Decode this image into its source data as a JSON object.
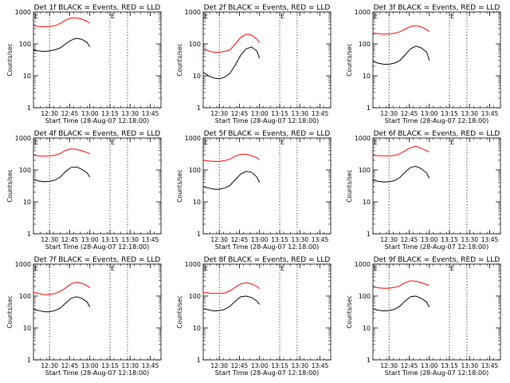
{
  "chart_data": [
    {
      "type": "line",
      "title": "Det 1f BLACK = Events, RED = LLD",
      "xlabel": "Start Time (28-Aug-07 12:18:00)",
      "ylabel": "Counts/sec",
      "yscale": "log",
      "ylim": [
        1,
        1000
      ],
      "xlim": [
        "12:18",
        "13:53"
      ],
      "x_ticks": [
        "12:30",
        "12:45",
        "13:00",
        "13:15",
        "13:30",
        "13:45"
      ],
      "y_ticks": [
        "1",
        "10",
        "100",
        "1000"
      ],
      "vlines": [
        "12:30",
        "13:15",
        "13:28"
      ],
      "marker": "E",
      "series": [
        {
          "color": "#ff0000",
          "x": [
            "12:18",
            "12:22",
            "12:26",
            "12:30",
            "12:34",
            "12:38",
            "12:42",
            "12:46",
            "12:50",
            "12:54",
            "12:58",
            "13:00"
          ],
          "values": [
            370,
            350,
            340,
            350,
            370,
            440,
            560,
            650,
            650,
            600,
            500,
            450
          ]
        },
        {
          "color": "#000000",
          "x": [
            "12:18",
            "12:22",
            "12:26",
            "12:30",
            "12:34",
            "12:38",
            "12:42",
            "12:46",
            "12:50",
            "12:54",
            "12:58",
            "13:00"
          ],
          "values": [
            65,
            60,
            58,
            60,
            65,
            75,
            100,
            130,
            150,
            140,
            110,
            80
          ]
        }
      ]
    },
    {
      "type": "line",
      "title": "Det 2f BLACK = Events, RED = LLD",
      "xlabel": "Start Time (28-Aug-07 12:18:00)",
      "ylabel": "Counts/sec",
      "yscale": "log",
      "ylim": [
        1,
        1000
      ],
      "xlim": [
        "12:18",
        "13:53"
      ],
      "x_ticks": [
        "12:30",
        "12:45",
        "13:00",
        "13:15",
        "13:30",
        "13:45"
      ],
      "y_ticks": [
        "1",
        "10",
        "100",
        "1000"
      ],
      "vlines": [
        "12:30",
        "13:15",
        "13:28"
      ],
      "marker": "E",
      "series": [
        {
          "color": "#ff0000",
          "x": [
            "12:18",
            "12:22",
            "12:26",
            "12:30",
            "12:34",
            "12:38",
            "12:42",
            "12:46",
            "12:50",
            "12:54",
            "12:58",
            "13:00"
          ],
          "values": [
            70,
            60,
            55,
            55,
            58,
            65,
            100,
            160,
            200,
            190,
            140,
            110
          ]
        },
        {
          "color": "#000000",
          "x": [
            "12:18",
            "12:22",
            "12:26",
            "12:30",
            "12:34",
            "12:38",
            "12:42",
            "12:46",
            "12:50",
            "12:54",
            "12:58",
            "13:00"
          ],
          "values": [
            13,
            10,
            8.5,
            8,
            9,
            12,
            22,
            45,
            70,
            80,
            60,
            35
          ]
        }
      ]
    },
    {
      "type": "line",
      "title": "Det 3f BLACK = Events, RED = LLD",
      "xlabel": "Start Time (28-Aug-07 12:18:00)",
      "ylabel": "Counts/sec",
      "yscale": "log",
      "ylim": [
        1,
        1000
      ],
      "xlim": [
        "12:18",
        "13:53"
      ],
      "x_ticks": [
        "12:30",
        "12:45",
        "13:00",
        "13:15",
        "13:30",
        "13:45"
      ],
      "y_ticks": [
        "1",
        "10",
        "100",
        "1000"
      ],
      "vlines": [
        "12:30",
        "13:15",
        "13:28"
      ],
      "marker": "E",
      "series": [
        {
          "color": "#ff0000",
          "x": [
            "12:18",
            "12:22",
            "12:26",
            "12:30",
            "12:34",
            "12:38",
            "12:42",
            "12:46",
            "12:50",
            "12:54",
            "12:58",
            "13:00"
          ],
          "values": [
            220,
            210,
            200,
            205,
            215,
            240,
            290,
            350,
            370,
            340,
            280,
            240
          ]
        },
        {
          "color": "#000000",
          "x": [
            "12:18",
            "12:22",
            "12:26",
            "12:30",
            "12:34",
            "12:38",
            "12:42",
            "12:46",
            "12:50",
            "12:54",
            "12:58",
            "13:00"
          ],
          "values": [
            28,
            25,
            23,
            23,
            25,
            30,
            45,
            70,
            85,
            75,
            55,
            30
          ]
        }
      ]
    },
    {
      "type": "line",
      "title": "Det 4f BLACK = Events, RED = LLD",
      "xlabel": "Start Time (28-Aug-07 12:18:00)",
      "ylabel": "Counts/sec",
      "yscale": "log",
      "ylim": [
        1,
        1000
      ],
      "xlim": [
        "12:18",
        "13:53"
      ],
      "x_ticks": [
        "12:30",
        "12:45",
        "13:00",
        "13:15",
        "13:30",
        "13:45"
      ],
      "y_ticks": [
        "1",
        "10",
        "100",
        "1000"
      ],
      "vlines": [
        "12:30",
        "13:15",
        "13:28"
      ],
      "marker": "E",
      "series": [
        {
          "color": "#ff0000",
          "x": [
            "12:18",
            "12:22",
            "12:26",
            "12:30",
            "12:34",
            "12:38",
            "12:42",
            "12:46",
            "12:50",
            "12:54",
            "12:58",
            "13:00"
          ],
          "values": [
            290,
            275,
            270,
            275,
            290,
            330,
            410,
            460,
            440,
            400,
            350,
            320
          ]
        },
        {
          "color": "#000000",
          "x": [
            "12:18",
            "12:22",
            "12:26",
            "12:30",
            "12:34",
            "12:38",
            "12:42",
            "12:46",
            "12:50",
            "12:54",
            "12:58",
            "13:00"
          ],
          "values": [
            50,
            45,
            43,
            44,
            48,
            60,
            90,
            120,
            125,
            105,
            80,
            60
          ]
        }
      ]
    },
    {
      "type": "line",
      "title": "Det 5f BLACK = Events, RED = LLD",
      "xlabel": "Start Time (28-Aug-07 12:18:00)",
      "ylabel": "Counts/sec",
      "yscale": "log",
      "ylim": [
        1,
        1000
      ],
      "xlim": [
        "12:18",
        "13:53"
      ],
      "x_ticks": [
        "12:30",
        "12:45",
        "13:00",
        "13:15",
        "13:30",
        "13:45"
      ],
      "y_ticks": [
        "1",
        "10",
        "100",
        "1000"
      ],
      "vlines": [
        "12:30",
        "13:15",
        "13:28"
      ],
      "marker": "E",
      "series": [
        {
          "color": "#ff0000",
          "x": [
            "12:18",
            "12:22",
            "12:26",
            "12:30",
            "12:34",
            "12:38",
            "12:42",
            "12:46",
            "12:50",
            "12:54",
            "12:58",
            "13:00"
          ],
          "values": [
            200,
            190,
            185,
            185,
            195,
            220,
            270,
            310,
            310,
            280,
            240,
            210
          ]
        },
        {
          "color": "#000000",
          "x": [
            "12:18",
            "12:22",
            "12:26",
            "12:30",
            "12:34",
            "12:38",
            "12:42",
            "12:46",
            "12:50",
            "12:54",
            "12:58",
            "13:00"
          ],
          "values": [
            30,
            27,
            25,
            25,
            27,
            33,
            50,
            75,
            90,
            85,
            60,
            40
          ]
        }
      ]
    },
    {
      "type": "line",
      "title": "Det 6f BLACK = Events, RED = LLD",
      "xlabel": "Start Time (28-Aug-07 12:18:00)",
      "ylabel": "Counts/sec",
      "yscale": "log",
      "ylim": [
        1,
        1000
      ],
      "xlim": [
        "12:18",
        "13:53"
      ],
      "x_ticks": [
        "12:30",
        "12:45",
        "13:00",
        "13:15",
        "13:30",
        "13:45"
      ],
      "y_ticks": [
        "1",
        "10",
        "100",
        "1000"
      ],
      "vlines": [
        "12:30",
        "13:15",
        "13:28"
      ],
      "marker": "E",
      "series": [
        {
          "color": "#ff0000",
          "x": [
            "12:18",
            "12:22",
            "12:26",
            "12:30",
            "12:34",
            "12:38",
            "12:42",
            "12:46",
            "12:50",
            "12:54",
            "12:58",
            "13:00"
          ],
          "values": [
            290,
            280,
            275,
            275,
            285,
            320,
            400,
            500,
            550,
            480,
            400,
            370
          ]
        },
        {
          "color": "#000000",
          "x": [
            "12:18",
            "12:22",
            "12:26",
            "12:30",
            "12:34",
            "12:38",
            "12:42",
            "12:46",
            "12:50",
            "12:54",
            "12:58",
            "13:00"
          ],
          "values": [
            48,
            44,
            42,
            43,
            46,
            58,
            85,
            120,
            130,
            110,
            80,
            55
          ]
        }
      ]
    },
    {
      "type": "line",
      "title": "Det 7f BLACK = Events, RED = LLD",
      "xlabel": "Start Time (28-Aug-07 12:18:00)",
      "ylabel": "Counts/sec",
      "yscale": "log",
      "ylim": [
        1,
        1000
      ],
      "xlim": [
        "12:18",
        "13:53"
      ],
      "x_ticks": [
        "12:30",
        "12:45",
        "13:00",
        "13:15",
        "13:30",
        "13:45"
      ],
      "y_ticks": [
        "1",
        "10",
        "100",
        "1000"
      ],
      "vlines": [
        "12:30",
        "13:15",
        "13:28"
      ],
      "marker": "E",
      "series": [
        {
          "color": "#ff0000",
          "x": [
            "12:18",
            "12:22",
            "12:26",
            "12:30",
            "12:34",
            "12:38",
            "12:42",
            "12:46",
            "12:50",
            "12:54",
            "12:58",
            "13:00"
          ],
          "values": [
            130,
            120,
            110,
            110,
            120,
            140,
            180,
            240,
            270,
            250,
            210,
            180
          ]
        },
        {
          "color": "#000000",
          "x": [
            "12:18",
            "12:22",
            "12:26",
            "12:30",
            "12:34",
            "12:38",
            "12:42",
            "12:46",
            "12:50",
            "12:54",
            "12:58",
            "13:00"
          ],
          "values": [
            38,
            35,
            32,
            32,
            35,
            42,
            60,
            85,
            95,
            85,
            65,
            45
          ]
        }
      ]
    },
    {
      "type": "line",
      "title": "Det 8f BLACK = Events, RED = LLD",
      "xlabel": "Start Time (28-Aug-07 12:18:00)",
      "ylabel": "Counts/sec",
      "yscale": "log",
      "ylim": [
        1,
        1000
      ],
      "xlim": [
        "12:18",
        "13:53"
      ],
      "x_ticks": [
        "12:30",
        "12:45",
        "13:00",
        "13:15",
        "13:30",
        "13:45"
      ],
      "y_ticks": [
        "1",
        "10",
        "100",
        "1000"
      ],
      "vlines": [
        "12:30",
        "13:15",
        "13:28"
      ],
      "marker": "E",
      "series": [
        {
          "color": "#ff0000",
          "x": [
            "12:18",
            "12:22",
            "12:26",
            "12:30",
            "12:34",
            "12:38",
            "12:42",
            "12:46",
            "12:50",
            "12:54",
            "12:58",
            "13:00"
          ],
          "values": [
            130,
            125,
            120,
            120,
            125,
            145,
            190,
            240,
            260,
            240,
            200,
            170
          ]
        },
        {
          "color": "#000000",
          "x": [
            "12:18",
            "12:22",
            "12:26",
            "12:30",
            "12:34",
            "12:38",
            "12:42",
            "12:46",
            "12:50",
            "12:54",
            "12:58",
            "13:00"
          ],
          "values": [
            40,
            37,
            34,
            35,
            38,
            48,
            70,
            95,
            100,
            90,
            70,
            55
          ]
        }
      ]
    },
    {
      "type": "line",
      "title": "Det 9f BLACK = Events, RED = LLD",
      "xlabel": "Start Time (28-Aug-07 12:18:00)",
      "ylabel": "Counts/sec",
      "yscale": "log",
      "ylim": [
        1,
        1000
      ],
      "xlim": [
        "12:18",
        "13:53"
      ],
      "x_ticks": [
        "12:30",
        "12:45",
        "13:00",
        "13:15",
        "13:30",
        "13:45"
      ],
      "y_ticks": [
        "1",
        "10",
        "100",
        "1000"
      ],
      "vlines": [
        "12:30",
        "13:15",
        "13:28"
      ],
      "marker": "E",
      "series": [
        {
          "color": "#ff0000",
          "x": [
            "12:18",
            "12:22",
            "12:26",
            "12:30",
            "12:34",
            "12:38",
            "12:42",
            "12:46",
            "12:50",
            "12:54",
            "12:58",
            "13:00"
          ],
          "values": [
            190,
            180,
            175,
            175,
            185,
            210,
            260,
            300,
            290,
            260,
            230,
            210
          ]
        },
        {
          "color": "#000000",
          "x": [
            "12:18",
            "12:22",
            "12:26",
            "12:30",
            "12:34",
            "12:38",
            "12:42",
            "12:46",
            "12:50",
            "12:54",
            "12:58",
            "13:00"
          ],
          "values": [
            40,
            36,
            34,
            35,
            38,
            48,
            70,
            95,
            100,
            85,
            65,
            45
          ]
        }
      ]
    }
  ]
}
